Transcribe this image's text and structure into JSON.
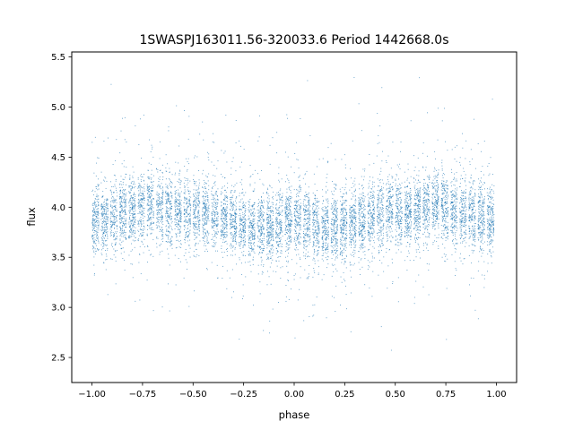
{
  "chart_data": {
    "type": "scatter",
    "title": "1SWASPJ163011.56-320033.6 Period 1442668.0s",
    "xlabel": "phase",
    "ylabel": "flux",
    "xlim": [
      -1.1,
      1.1
    ],
    "ylim": [
      2.25,
      5.55
    ],
    "xticks": [
      -1.0,
      -0.75,
      -0.5,
      -0.25,
      0.0,
      0.25,
      0.5,
      0.75,
      1.0
    ],
    "xtick_labels": [
      "−1.00",
      "−0.75",
      "−0.50",
      "−0.25",
      "0.00",
      "0.25",
      "0.50",
      "0.75",
      "1.00"
    ],
    "yticks": [
      2.5,
      3.0,
      3.5,
      4.0,
      4.5,
      5.0,
      5.5
    ],
    "ytick_labels": [
      "2.5",
      "3.0",
      "3.5",
      "4.0",
      "4.5",
      "5.0",
      "5.5"
    ],
    "grid": false,
    "legend": "none",
    "marker_color": "#1f77b4",
    "series": [
      {
        "x_range": [
          -1.0,
          1.0
        ],
        "y_range": [
          2.45,
          5.45
        ],
        "symmetric_about_phase_zero": true,
        "profile": {
          "phase": [
            0.0,
            0.05,
            0.1,
            0.15,
            0.2,
            0.25,
            0.3,
            0.35,
            0.4,
            0.45,
            0.5,
            0.55,
            0.6,
            0.65,
            0.7,
            0.75,
            0.8,
            0.85,
            0.9,
            0.95,
            1.0
          ],
          "median_flux": [
            3.9,
            3.85,
            3.82,
            3.78,
            3.8,
            3.82,
            3.85,
            3.88,
            3.92,
            3.95,
            3.95,
            3.93,
            3.95,
            4.0,
            4.03,
            4.0,
            3.95,
            3.93,
            3.9,
            3.88,
            3.86
          ]
        }
      }
    ]
  }
}
